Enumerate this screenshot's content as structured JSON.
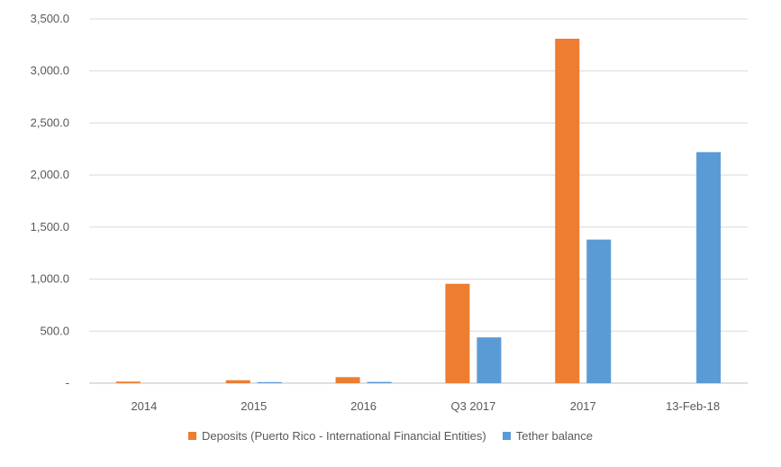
{
  "chart_data": {
    "type": "bar",
    "categories": [
      "2014",
      "2015",
      "2016",
      "Q3 2017",
      "2017",
      "13-Feb-18"
    ],
    "series": [
      {
        "name": "Deposits (Puerto Rico - International Financial Entities)",
        "color": "#ED7D31",
        "values": [
          15,
          28,
          58,
          955,
          3310,
          0
        ]
      },
      {
        "name": "Tether balance",
        "color": "#5B9BD5",
        "values": [
          0,
          10,
          12,
          440,
          1380,
          2220
        ]
      }
    ],
    "yticks": [
      {
        "value": 0,
        "label": "-"
      },
      {
        "value": 500,
        "label": "500.0"
      },
      {
        "value": 1000,
        "label": "1,000.0"
      },
      {
        "value": 1500,
        "label": "1,500.0"
      },
      {
        "value": 2000,
        "label": "2,000.0"
      },
      {
        "value": 2500,
        "label": "2,500.0"
      },
      {
        "value": 3000,
        "label": "3,000.0"
      },
      {
        "value": 3500,
        "label": "3,500.0"
      }
    ],
    "ylim": [
      0,
      3500
    ],
    "grid": true,
    "legend_position": "bottom",
    "title": "",
    "xlabel": "",
    "ylabel": ""
  }
}
